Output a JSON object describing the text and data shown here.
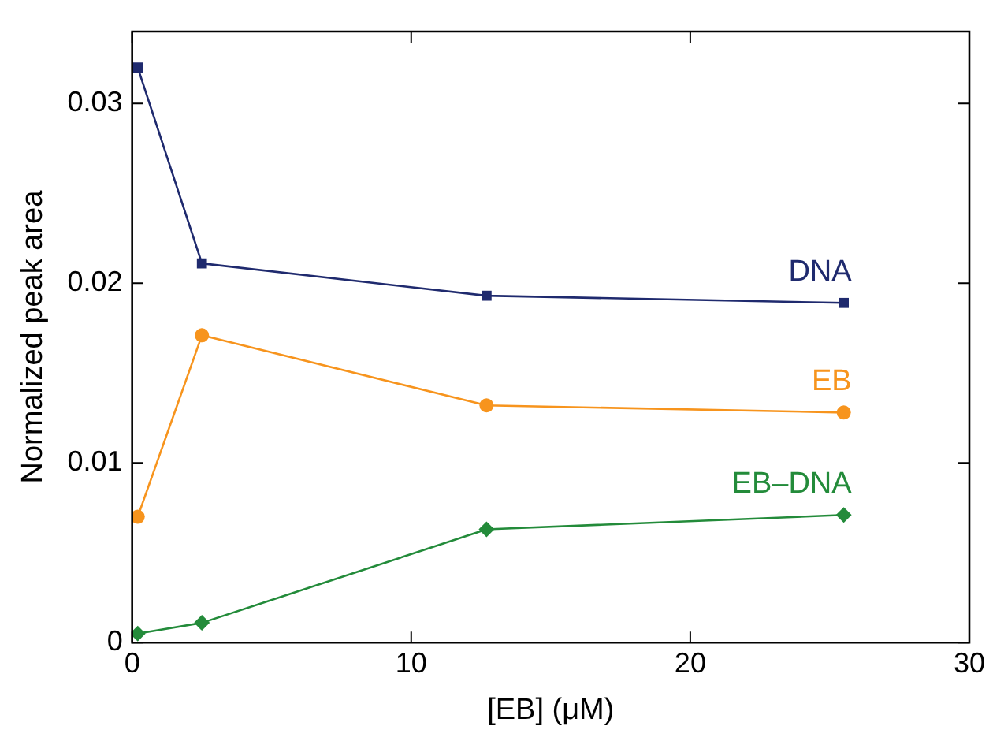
{
  "chart_data": {
    "type": "line",
    "xlabel": "[EB] (μM)",
    "ylabel": "Normalized peak area",
    "x": [
      0.2,
      2.5,
      12.7,
      25.5
    ],
    "xlim": [
      0,
      30
    ],
    "xticks": [
      0,
      10,
      20,
      30
    ],
    "ylim": [
      0,
      0.034
    ],
    "yticks": [
      0,
      0.01,
      0.02,
      0.03
    ],
    "grid": false,
    "legend": false,
    "series": [
      {
        "name": "DNA",
        "color": "#1f2a6e",
        "marker": "square",
        "values": [
          0.032,
          0.0211,
          0.0193,
          0.0189
        ]
      },
      {
        "name": "EB",
        "color": "#f7941d",
        "marker": "circle",
        "values": [
          0.007,
          0.0171,
          0.0132,
          0.0128
        ]
      },
      {
        "name": "EB–DNA",
        "color": "#238b3a",
        "marker": "diamond",
        "values": [
          0.0005,
          0.0011,
          0.0063,
          0.0071
        ]
      }
    ]
  }
}
